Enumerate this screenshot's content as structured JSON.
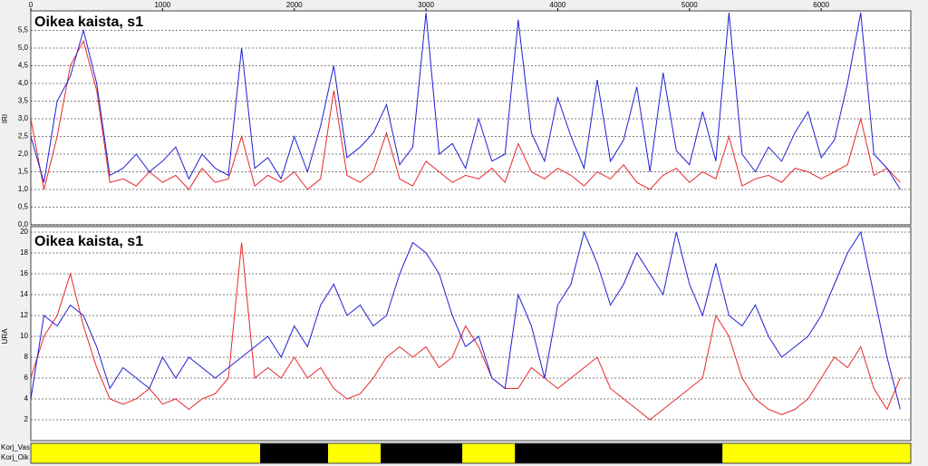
{
  "chart_data": [
    {
      "type": "line",
      "title": "Oikea kaista, s1",
      "y_label": "IRI",
      "x": [
        0,
        100,
        200,
        300,
        400,
        500,
        600,
        700,
        800,
        900,
        1000,
        1100,
        1200,
        1300,
        1400,
        1500,
        1600,
        1700,
        1800,
        1900,
        2000,
        2100,
        2200,
        2300,
        2400,
        2500,
        2600,
        2700,
        2800,
        2900,
        3000,
        3100,
        3200,
        3300,
        3400,
        3500,
        3600,
        3700,
        3800,
        3900,
        4000,
        4100,
        4200,
        4300,
        4400,
        4500,
        4600,
        4700,
        4800,
        4900,
        5000,
        5100,
        5200,
        5300,
        5400,
        5500,
        5600,
        5700,
        5800,
        5900,
        6000,
        6100,
        6200,
        6300,
        6400,
        6500,
        6600
      ],
      "xlim": [
        0,
        6680
      ],
      "xticks": [
        0,
        1000,
        2000,
        3000,
        4000,
        5000,
        6000
      ],
      "ylim": [
        0,
        6.0
      ],
      "yticks": [
        {
          "value": 0,
          "label": "0,0"
        },
        {
          "value": 0.5,
          "label": "0,5"
        },
        {
          "value": 1,
          "label": "1,0"
        },
        {
          "value": 1.5,
          "label": "1,5"
        },
        {
          "value": 2,
          "label": "2,0"
        },
        {
          "value": 2.5,
          "label": "2,5"
        },
        {
          "value": 3,
          "label": "3,0"
        },
        {
          "value": 3.5,
          "label": "3,5"
        },
        {
          "value": 4,
          "label": "4,0"
        },
        {
          "value": 4.5,
          "label": "4,5"
        },
        {
          "value": 5,
          "label": "5,0"
        },
        {
          "value": 5.5,
          "label": "5,5"
        }
      ],
      "grid": true,
      "series": [
        {
          "color": "#e8282b",
          "values": [
            3.0,
            1.0,
            2.5,
            4.5,
            5.2,
            3.8,
            1.2,
            1.3,
            1.1,
            1.5,
            1.2,
            1.4,
            1.0,
            1.6,
            1.2,
            1.3,
            2.5,
            1.1,
            1.4,
            1.2,
            1.5,
            1.0,
            1.3,
            3.8,
            1.4,
            1.2,
            1.5,
            2.6,
            1.3,
            1.1,
            1.8,
            1.5,
            1.2,
            1.4,
            1.3,
            1.6,
            1.2,
            2.3,
            1.5,
            1.3,
            1.6,
            1.4,
            1.1,
            1.5,
            1.3,
            1.7,
            1.2,
            1.0,
            1.4,
            1.6,
            1.2,
            1.5,
            1.3,
            2.5,
            1.1,
            1.3,
            1.4,
            1.2,
            1.6,
            1.5,
            1.3,
            1.5,
            1.7,
            3.0,
            1.4,
            1.6,
            1.2
          ]
        },
        {
          "color": "#1f1fd6",
          "values": [
            2.5,
            1.2,
            3.5,
            4.2,
            5.5,
            4.0,
            1.4,
            1.6,
            2.0,
            1.5,
            1.8,
            2.2,
            1.3,
            2.0,
            1.6,
            1.4,
            5.0,
            1.6,
            1.9,
            1.3,
            2.5,
            1.5,
            2.8,
            4.5,
            1.9,
            2.2,
            2.6,
            3.4,
            1.7,
            2.2,
            6.0,
            2.0,
            2.3,
            1.6,
            3.0,
            1.8,
            2.0,
            5.8,
            2.6,
            1.8,
            3.6,
            2.5,
            1.6,
            4.1,
            1.8,
            2.4,
            3.9,
            1.5,
            4.3,
            2.1,
            1.7,
            3.2,
            1.8,
            6.0,
            2.0,
            1.5,
            2.2,
            1.8,
            2.6,
            3.2,
            1.9,
            2.4,
            4.0,
            6.0,
            2.0,
            1.6,
            1.0
          ]
        }
      ]
    },
    {
      "type": "line",
      "title": "Oikea kaista, s1",
      "y_label": "URA",
      "x": [
        0,
        100,
        200,
        300,
        400,
        500,
        600,
        700,
        800,
        900,
        1000,
        1100,
        1200,
        1300,
        1400,
        1500,
        1600,
        1700,
        1800,
        1900,
        2000,
        2100,
        2200,
        2300,
        2400,
        2500,
        2600,
        2700,
        2800,
        2900,
        3000,
        3100,
        3200,
        3300,
        3400,
        3500,
        3600,
        3700,
        3800,
        3900,
        4000,
        4100,
        4200,
        4300,
        4400,
        4500,
        4600,
        4700,
        4800,
        4900,
        5000,
        5100,
        5200,
        5300,
        5400,
        5500,
        5600,
        5700,
        5800,
        5900,
        6000,
        6100,
        6200,
        6300,
        6400,
        6500,
        6600
      ],
      "xlim": [
        0,
        6680
      ],
      "ylim": [
        0,
        20
      ],
      "yticks": [
        2,
        4,
        6,
        8,
        10,
        12,
        14,
        16,
        18,
        20
      ],
      "grid": true,
      "series": [
        {
          "color": "#e8282b",
          "values": [
            6,
            10,
            12,
            16,
            11,
            7,
            4,
            3.5,
            4,
            5,
            3.5,
            4,
            3,
            4,
            4.5,
            6,
            19,
            6,
            7,
            6,
            8,
            6,
            7,
            5,
            4,
            4.5,
            6,
            8,
            9,
            8,
            9,
            7,
            8,
            11,
            9,
            6,
            5,
            5,
            7,
            6,
            5,
            6,
            7,
            8,
            5,
            4,
            3,
            2,
            3,
            4,
            5,
            6,
            12,
            10,
            6,
            4,
            3,
            2.5,
            3,
            4,
            6,
            8,
            7,
            9,
            5,
            3,
            6
          ]
        },
        {
          "color": "#1f1fd6",
          "values": [
            4,
            12,
            11,
            13,
            12,
            9,
            5,
            7,
            6,
            5,
            8,
            6,
            8,
            7,
            6,
            7,
            8,
            9,
            10,
            8,
            11,
            9,
            13,
            15,
            12,
            13,
            11,
            12,
            16,
            19,
            18,
            16,
            12,
            9,
            10,
            6,
            5,
            14,
            11,
            6,
            13,
            15,
            20,
            17,
            13,
            15,
            18,
            16,
            14,
            20,
            15,
            12,
            17,
            12,
            11,
            13,
            10,
            8,
            9,
            10,
            12,
            15,
            18,
            20,
            14,
            8,
            3
          ]
        }
      ]
    }
  ],
  "strip": {
    "labels": [
      "Korj_Vas",
      "Korj_Oik"
    ],
    "segments": [
      {
        "start": 0,
        "end": 1741,
        "color": "#ffff00"
      },
      {
        "start": 1741,
        "end": 2257,
        "color": "#000000"
      },
      {
        "start": 2257,
        "end": 2656,
        "color": "#ffff00"
      },
      {
        "start": 2656,
        "end": 3276,
        "color": "#000000"
      },
      {
        "start": 3276,
        "end": 3675,
        "color": "#ffff00"
      },
      {
        "start": 3675,
        "end": 5251,
        "color": "#000000"
      },
      {
        "start": 5251,
        "end": 6680,
        "color": "#ffff00"
      }
    ]
  }
}
